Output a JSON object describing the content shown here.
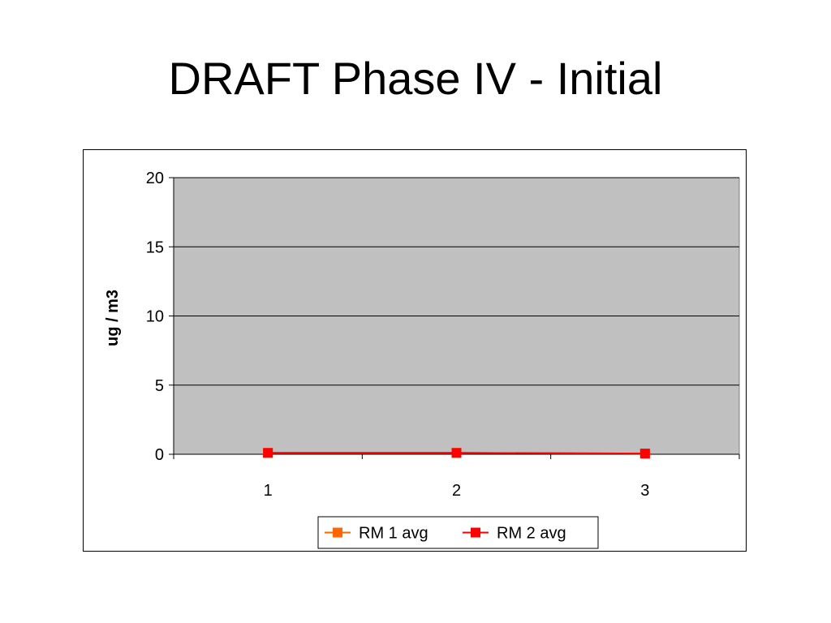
{
  "slide": {
    "title": "DRAFT Phase IV - Initial"
  },
  "chart_data": {
    "type": "line",
    "categories": [
      "1",
      "2",
      "3"
    ],
    "x": [
      1,
      2,
      3
    ],
    "series": [
      {
        "name": "RM 1 avg",
        "values": [
          0.1,
          0.1,
          0.05
        ],
        "color": "#ff6600"
      },
      {
        "name": "RM 2 avg",
        "values": [
          0.1,
          0.1,
          0.05
        ],
        "color": "#ff0000"
      }
    ],
    "title": "",
    "xlabel": "",
    "ylabel": "ug / m3",
    "ylim": [
      0,
      20
    ],
    "yticks": [
      0,
      5,
      10,
      15,
      20
    ],
    "grid": true,
    "plot_background": "#c0c0c0",
    "legend_position": "bottom"
  }
}
